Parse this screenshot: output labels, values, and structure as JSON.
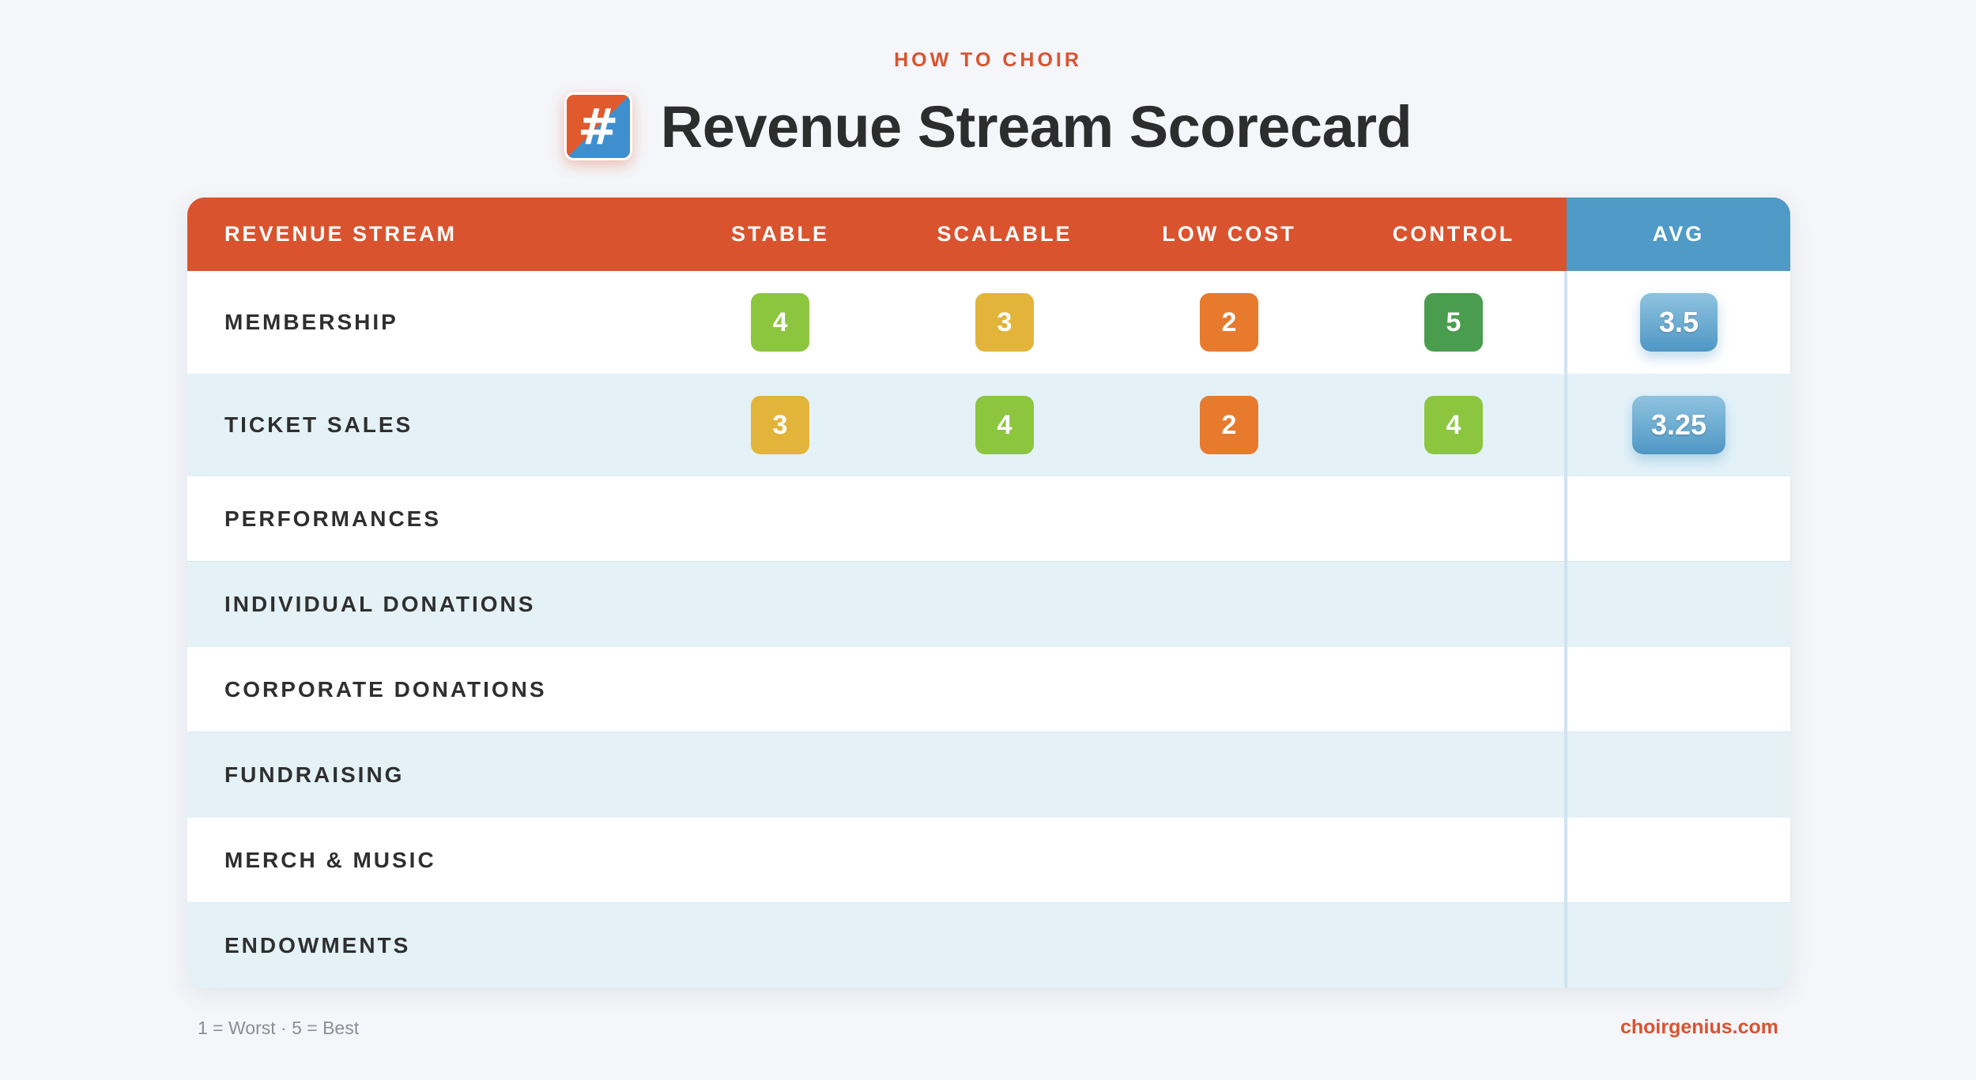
{
  "header": {
    "eyebrow": "HOW TO CHOIR",
    "logo_glyph": "#",
    "title": "Revenue Stream Scorecard"
  },
  "colors": {
    "brand_orange": "#d9532f",
    "brand_blue": "#4f9ac6",
    "score_5": "#4a9d4e",
    "score_4": "#8cc63f",
    "score_3": "#e2b43a",
    "score_2": "#e87a2e",
    "alt_row": "#e4f2f8"
  },
  "table": {
    "columns": [
      "REVENUE STREAM",
      "STABLE",
      "SCALABLE",
      "LOW COST",
      "CONTROL",
      "AVG"
    ],
    "rows": [
      {
        "stream": "MEMBERSHIP",
        "scores": [
          "4",
          "3",
          "2",
          "5"
        ],
        "avg": "3.5"
      },
      {
        "stream": "TICKET SALES",
        "scores": [
          "3",
          "4",
          "2",
          "4"
        ],
        "avg": "3.25"
      },
      {
        "stream": "PERFORMANCES"
      },
      {
        "stream": "INDIVIDUAL DONATIONS"
      },
      {
        "stream": "CORPORATE DONATIONS"
      },
      {
        "stream": "FUNDRAISING"
      },
      {
        "stream": "MERCH & MUSIC"
      },
      {
        "stream": "ENDOWMENTS"
      }
    ]
  },
  "footer": {
    "legend": "1 = Worst · 5 = Best",
    "site": "choirgenius.com"
  }
}
